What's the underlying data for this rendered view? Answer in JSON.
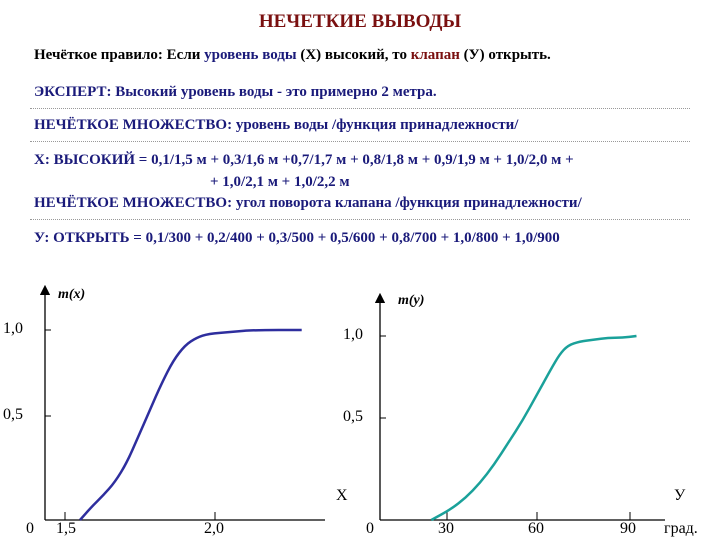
{
  "title": "НЕЧЕТКИЕ ВЫВОДЫ",
  "rule": {
    "prefix": "Нечёткое правило: Если ",
    "antecedent": "уровень воды",
    "antecedent_var": " (Х) ",
    "middle": "высокий, то ",
    "consequent": "клапан",
    "consequent_var": " (У) ",
    "suffix": "открыть."
  },
  "expert": "ЭКСПЕРТ: Высокий уровень воды - это примерно 2 метра.",
  "fuzzy_set_1": "НЕЧЁТКОЕ МНОЖЕСТВО: уровень воды /функция принадлежности/",
  "x_high_line1": "Х: ВЫСОКИЙ = 0,1/1,5 м + 0,3/1,6 м +0,7/1,7 м + 0,8/1,8 м + 0,9/1,9 м + 1,0/2,0 м +",
  "x_high_line2": "+ 1,0/2,1 м + 1,0/2,2 м",
  "fuzzy_set_2": "НЕЧЁТКОЕ МНОЖЕСТВО: угол поворота клапана /функция принадлежности/",
  "y_open": "У: ОТКРЫТЬ = 0,1/300 + 0,2/400 + 0,3/500 + 0,5/600 + 0,8/700 + 1,0/800 + 1,0/900",
  "chart_data": [
    {
      "type": "line",
      "ylabel": "m(x)",
      "xlabel": "Х",
      "y_ticks": [
        "1,0",
        "0,5"
      ],
      "x_ticks": [
        "0",
        "1,5",
        "2,0"
      ],
      "color": "#2e2e9e",
      "ylim": [
        0,
        1
      ],
      "xlim": [
        1.3,
        2.5
      ],
      "x": [
        1.45,
        1.5,
        1.55,
        1.6,
        1.65,
        1.7,
        1.75,
        1.8,
        1.85,
        1.9,
        1.95,
        2.0,
        2.1,
        2.2,
        2.4
      ],
      "y": [
        0.0,
        0.07,
        0.13,
        0.2,
        0.3,
        0.44,
        0.58,
        0.72,
        0.84,
        0.92,
        0.96,
        0.98,
        0.99,
        1.0,
        1.0
      ]
    },
    {
      "type": "line",
      "ylabel": "m(y)",
      "xlabel": "У",
      "y_ticks": [
        "1,0",
        "0,5"
      ],
      "x_ticks": [
        "0",
        "30",
        "60",
        "90"
      ],
      "x_unit": "град.",
      "color": "#1aa19a",
      "ylim": [
        0,
        1
      ],
      "xlim": [
        0,
        100
      ],
      "x": [
        18,
        25,
        30,
        35,
        40,
        45,
        50,
        55,
        60,
        63,
        66,
        70,
        75,
        80,
        85,
        90
      ],
      "y": [
        0.0,
        0.06,
        0.12,
        0.2,
        0.3,
        0.42,
        0.54,
        0.68,
        0.82,
        0.9,
        0.95,
        0.97,
        0.98,
        0.99,
        0.99,
        1.0
      ]
    }
  ]
}
